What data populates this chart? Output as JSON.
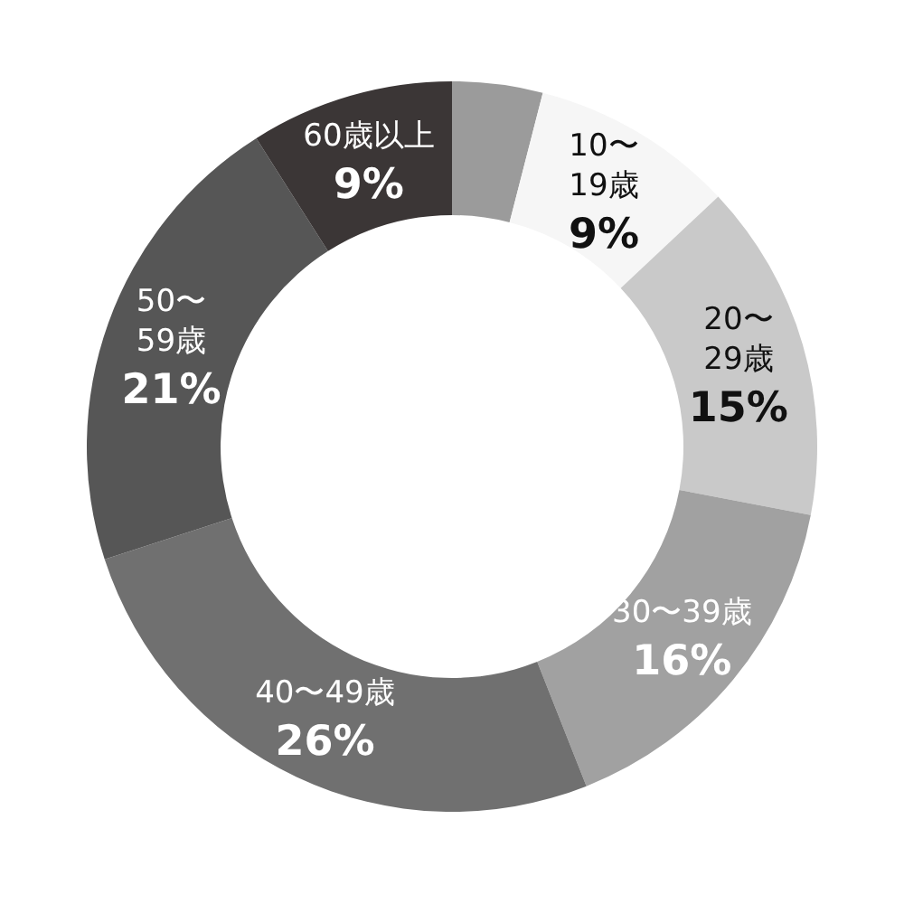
{
  "chart_data": {
    "type": "donut",
    "categories": [
      null,
      "10〜\n19歳",
      "20〜\n29歳",
      "30〜39歳",
      "40〜49歳",
      "50〜\n59歳",
      "60歳以上"
    ],
    "values": [
      4,
      9,
      15,
      16,
      26,
      21,
      9
    ],
    "colors": [
      "#9b9b9b",
      "#f6f6f6",
      "#c9c9c9",
      "#a1a1a1",
      "#707070",
      "#565656",
      "#3b3636"
    ],
    "value_labels": [
      null,
      "9%",
      "15%",
      "16%",
      "26%",
      "21%",
      "9%"
    ]
  }
}
